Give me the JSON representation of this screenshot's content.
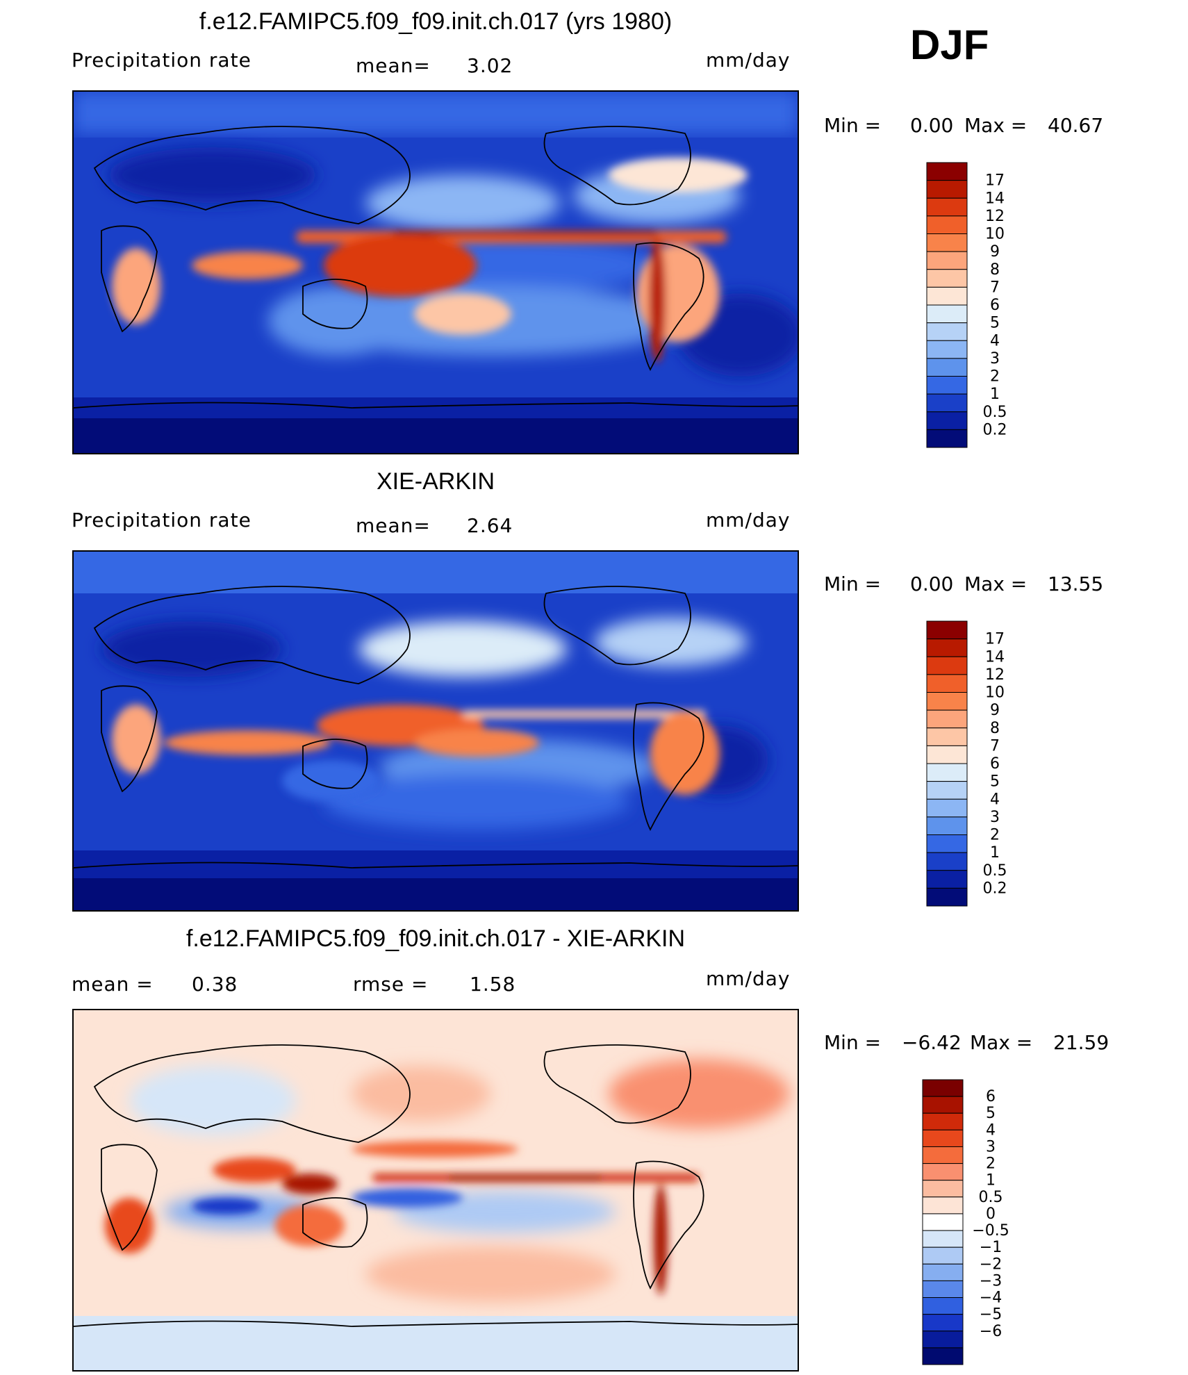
{
  "season": "DJF",
  "panels": [
    {
      "title": "f.e12.FAMIPC5.f09_f09.init.ch.017 (yrs 1980)",
      "left_label": "Precipitation  rate",
      "center_label": "mean=",
      "center_value": "3.02",
      "units": "mm/day",
      "min_label": "Min  =",
      "min_value": "0.00",
      "max_label": "Max  =",
      "max_value": "40.67"
    },
    {
      "title": "XIE-ARKIN",
      "left_label": "Precipitation  rate",
      "center_label": "mean=",
      "center_value": "2.64",
      "units": "mm/day",
      "min_label": "Min  =",
      "min_value": "0.00",
      "max_label": "Max  =",
      "max_value": "13.55"
    },
    {
      "title": "f.e12.FAMIPC5.f09_f09.init.ch.017 - XIE-ARKIN",
      "left_label": "mean  =",
      "left_value": "0.38",
      "center_label": "rmse  =",
      "center_value": "1.58",
      "units": "mm/day",
      "min_label": "Min  =",
      "min_value": "−6.42",
      "max_label": "Max  =",
      "max_value": "21.59"
    }
  ],
  "chart_data": [
    {
      "type": "heatmap",
      "title": "f.e12.FAMIPC5.f09_f09.init.ch.017 (yrs 1980)",
      "variable": "Precipitation rate",
      "units": "mm/day",
      "mean": 3.02,
      "min": 0.0,
      "max": 40.67,
      "colorbar_levels": [
        "17",
        "14",
        "12",
        "10",
        "9",
        "8",
        "7",
        "6",
        "5",
        "4",
        "3",
        "2",
        "1",
        "0.5",
        "0.2"
      ],
      "colorbar_colors": [
        "#8b0000",
        "#b81a00",
        "#dc3a10",
        "#f0602a",
        "#f8834a",
        "#fca57c",
        "#fdc6a6",
        "#fde6d6",
        "#dcecf8",
        "#b6d2f6",
        "#8cb6f4",
        "#5e93ec",
        "#3568e4",
        "#1a40c8",
        "#0a20a4",
        "#020c78"
      ]
    },
    {
      "type": "heatmap",
      "title": "XIE-ARKIN",
      "variable": "Precipitation rate",
      "units": "mm/day",
      "mean": 2.64,
      "min": 0.0,
      "max": 13.55,
      "colorbar_levels": [
        "17",
        "14",
        "12",
        "10",
        "9",
        "8",
        "7",
        "6",
        "5",
        "4",
        "3",
        "2",
        "1",
        "0.5",
        "0.2"
      ],
      "colorbar_colors": [
        "#8b0000",
        "#b81a00",
        "#dc3a10",
        "#f0602a",
        "#f8834a",
        "#fca57c",
        "#fdc6a6",
        "#fde6d6",
        "#dcecf8",
        "#b6d2f6",
        "#8cb6f4",
        "#5e93ec",
        "#3568e4",
        "#1a40c8",
        "#0a20a4",
        "#020c78"
      ]
    },
    {
      "type": "heatmap",
      "title": "f.e12.FAMIPC5.f09_f09.init.ch.017 - XIE-ARKIN",
      "units": "mm/day",
      "mean": 0.38,
      "rmse": 1.58,
      "min": -6.42,
      "max": 21.59,
      "colorbar_levels": [
        "6",
        "5",
        "4",
        "3",
        "2",
        "1",
        "0.5",
        "0",
        "−0.5",
        "−1",
        "−2",
        "−3",
        "−4",
        "−5",
        "−6"
      ],
      "colorbar_colors": [
        "#7a0000",
        "#a81200",
        "#d02a0a",
        "#e8481c",
        "#f46c3c",
        "#f99070",
        "#fbbca0",
        "#fde4d6",
        "#ffffff",
        "#d6e6f8",
        "#aecaf4",
        "#86aef0",
        "#5a88ea",
        "#3060e0",
        "#1838c8",
        "#081c9c",
        "#000a70"
      ]
    }
  ]
}
